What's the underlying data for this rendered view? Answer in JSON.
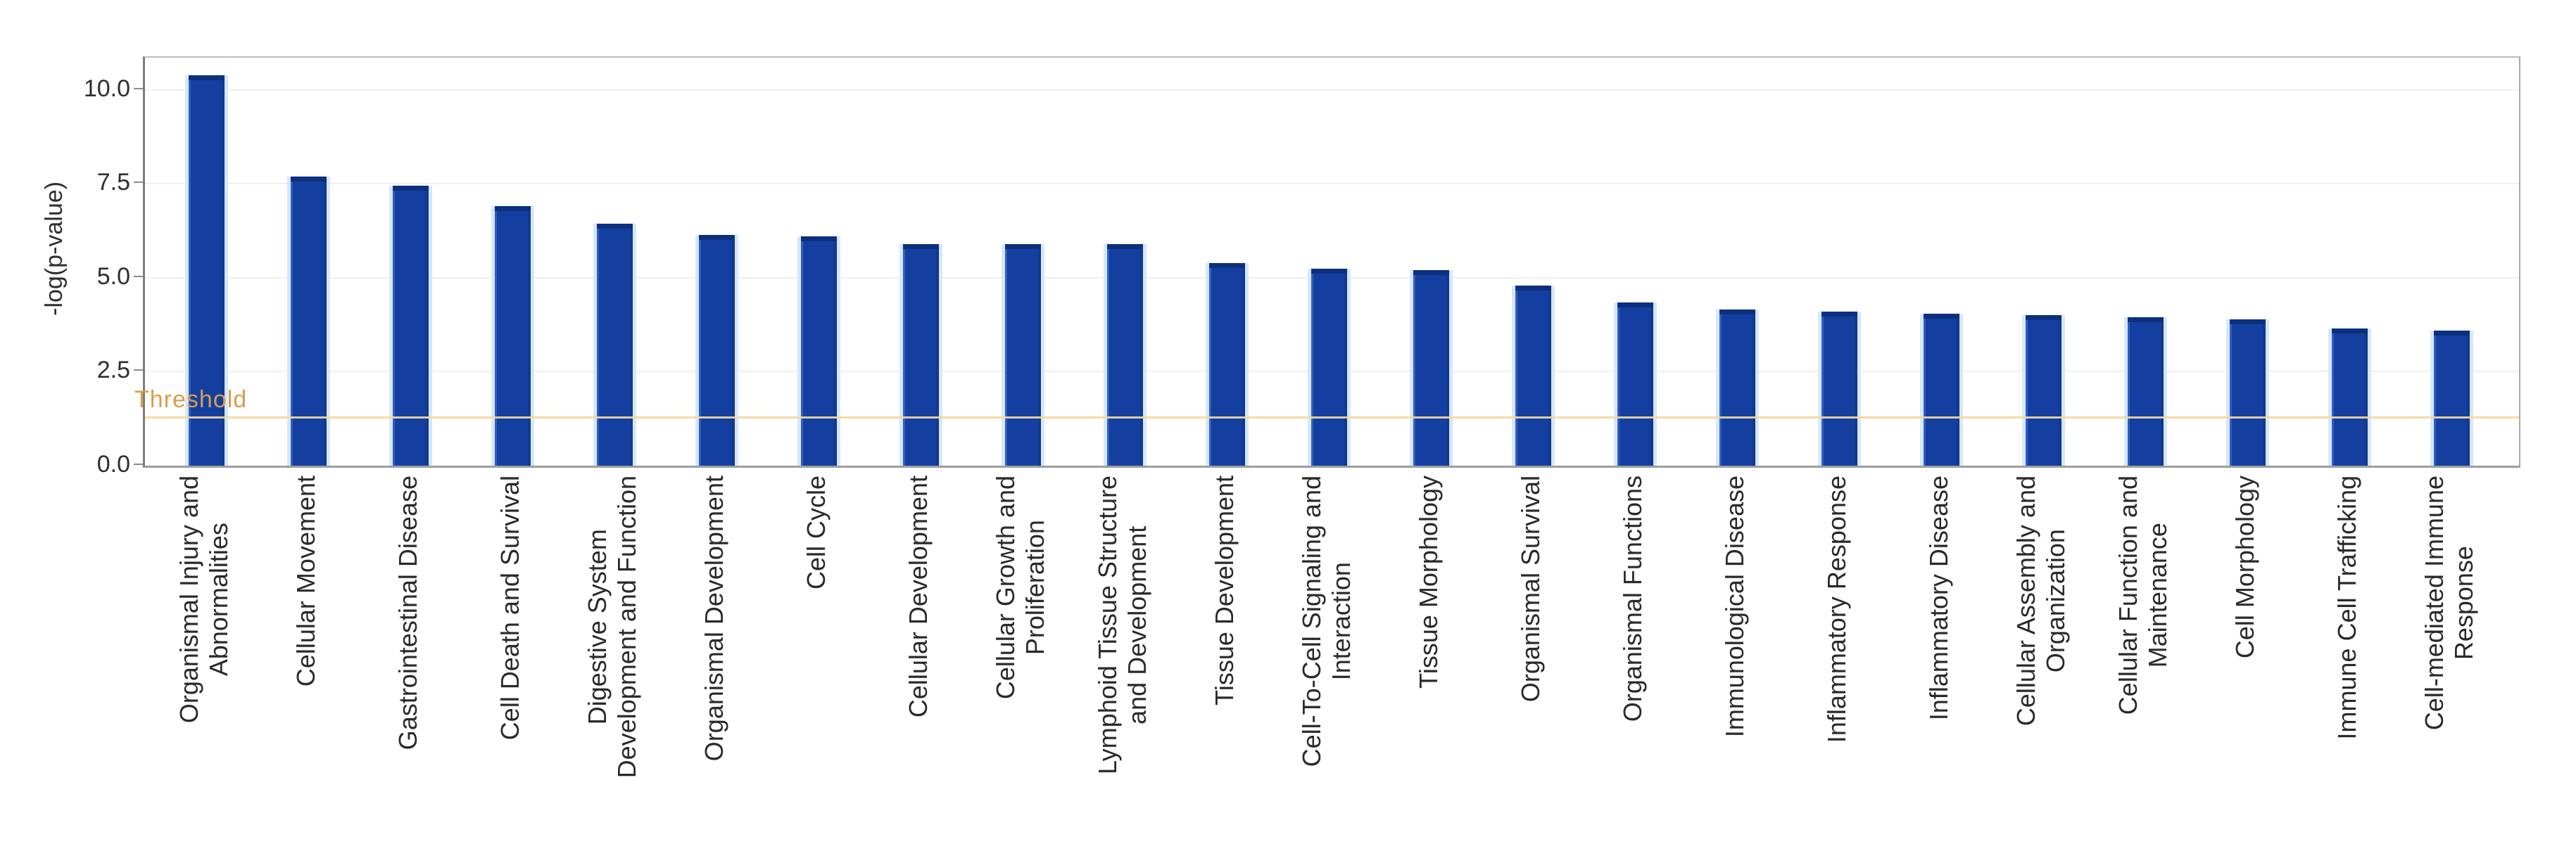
{
  "chart_data": {
    "type": "bar",
    "title": "",
    "xlabel": "",
    "ylabel": "-log(p-value)",
    "categories": [
      "Organismal Injury and\nAbnormalities",
      "Cellular Movement",
      "Gastrointestinal Disease",
      "Cell Death and Survival",
      "Digestive System\nDevelopment and Function",
      "Organismal Development",
      "Cell Cycle",
      "Cellular Development",
      "Cellular Growth and\nProliferation",
      "Lymphoid Tissue Structure\nand Development",
      "Tissue Development",
      "Cell-To-Cell Signaling and\nInteraction",
      "Tissue Morphology",
      "Organismal Survival",
      "Organismal Functions",
      "Immunological Disease",
      "Inflammatory Response",
      "Inflammatory Disease",
      "Cellular Assembly and\nOrganization",
      "Cellular Function and\nMaintenance",
      "Cell Morphology",
      "Immune Cell Trafficking",
      "Cell-mediated Immune\nResponse"
    ],
    "values": [
      10.4,
      7.7,
      7.45,
      6.9,
      6.45,
      6.15,
      6.1,
      5.9,
      5.9,
      5.9,
      5.4,
      5.25,
      5.2,
      4.8,
      4.35,
      4.15,
      4.1,
      4.05,
      4.0,
      3.95,
      3.9,
      3.65,
      3.6
    ],
    "yticks": {
      "labels": [
        "10.0",
        "7.5",
        "5.0",
        "2.5",
        "0.0"
      ],
      "values": [
        10,
        7.5,
        5,
        2.5,
        0
      ]
    },
    "ylim": [
      0,
      10.86
    ],
    "grid": true,
    "legend": null,
    "threshold": {
      "label": "Threshold",
      "value": 1.3
    },
    "colors": {
      "bar": "#143fa0",
      "bar_cap": "#0c2f7e",
      "bar_edge_light": "#2e5ec2",
      "bar_edge_dark": "#0f3a8e",
      "bar_halo": "#d7e7f7",
      "threshold_line": "#f4d7a0",
      "threshold_text": "#d89c50",
      "grid_line": "#f0f0f0",
      "axis_text": "#2e2e2e"
    }
  }
}
